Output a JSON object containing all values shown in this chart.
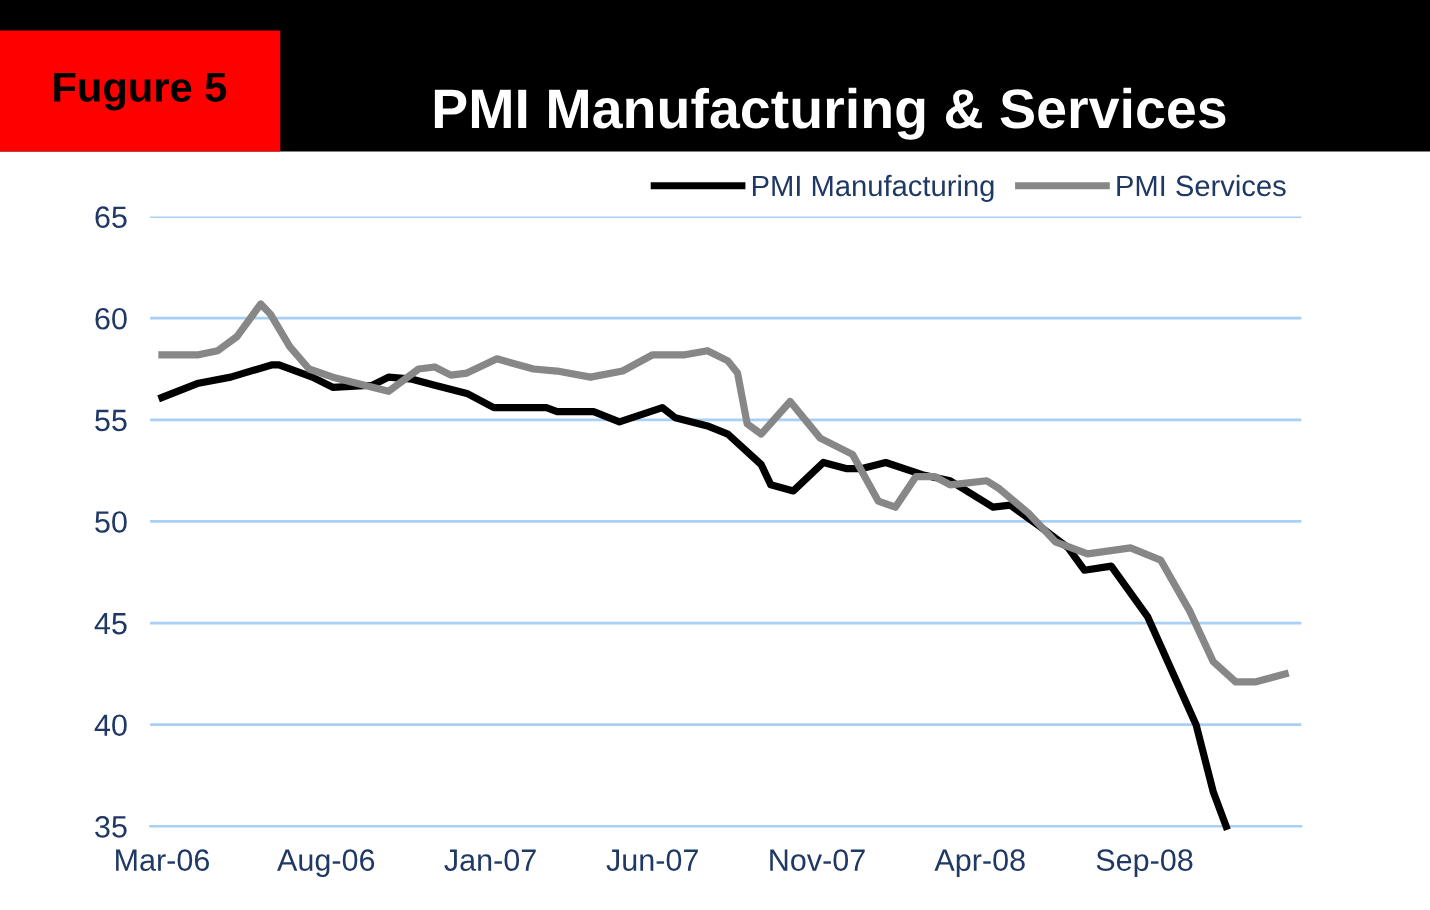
{
  "chart_data": {
    "type": "line",
    "title": "PMI Manufacturing & Services",
    "annotations": [
      "Fugure 5"
    ],
    "xlim": [
      "2006-02-18",
      "2009-01-25"
    ],
    "ylim": [
      35,
      65
    ],
    "yticks": [
      35,
      40,
      45,
      50,
      55,
      60,
      65
    ],
    "xticks": [
      {
        "value": "2006-03-01",
        "label": "Mar-06"
      },
      {
        "value": "2006-08-01",
        "label": "Aug-06"
      },
      {
        "value": "2007-01-01",
        "label": "Jan-07"
      },
      {
        "value": "2007-06-01",
        "label": "Jun-07"
      },
      {
        "value": "2007-11-01",
        "label": "Nov-07"
      },
      {
        "value": "2008-04-01",
        "label": "Apr-08"
      },
      {
        "value": "2008-09-01",
        "label": "Sep-08"
      }
    ],
    "grid": "y",
    "legend": "top right",
    "marker": "none",
    "line_style": "solid",
    "series": [
      {
        "name": "PMI Manufacturing",
        "color": "#000000",
        "x": [
          "2006-03-01",
          "2006-04-04",
          "2006-05-04",
          "2006-06-11",
          "2006-06-18",
          "2006-07-19",
          "2006-08-07",
          "2006-09-13",
          "2006-09-28",
          "2006-10-20",
          "2006-11-10",
          "2006-12-10",
          "2007-01-04",
          "2007-02-22",
          "2007-03-04",
          "2007-04-07",
          "2007-05-01",
          "2007-06-10",
          "2007-06-22",
          "2007-07-22",
          "2007-08-10",
          "2007-09-10",
          "2007-09-19",
          "2007-10-10",
          "2007-11-07",
          "2007-11-28",
          "2007-12-13",
          "2008-01-04",
          "2008-02-07",
          "2008-03-04",
          "2008-04-13",
          "2008-04-29",
          "2008-05-28",
          "2008-06-22",
          "2008-07-07",
          "2008-08-01",
          "2008-09-04",
          "2008-10-19",
          "2008-11-04",
          "2008-11-16"
        ],
        "values": [
          56.1,
          56.8,
          57.1,
          57.7,
          57.7,
          57.1,
          56.6,
          56.7,
          57.1,
          57.0,
          56.7,
          56.3,
          55.6,
          55.6,
          55.4,
          55.4,
          54.9,
          55.6,
          55.1,
          54.7,
          54.3,
          52.8,
          51.8,
          51.5,
          52.9,
          52.6,
          52.6,
          52.9,
          52.3,
          52.0,
          50.7,
          50.8,
          49.7,
          48.7,
          47.6,
          47.8,
          45.3,
          40.0,
          36.7,
          35.0
        ]
      },
      {
        "name": "PMI Services",
        "color": "#878787",
        "x": [
          "2006-03-01",
          "2006-04-04",
          "2006-04-22",
          "2006-05-10",
          "2006-06-01",
          "2006-06-10",
          "2006-06-28",
          "2006-07-16",
          "2006-08-07",
          "2006-09-13",
          "2006-09-28",
          "2006-10-26",
          "2006-11-10",
          "2006-11-25",
          "2006-12-10",
          "2007-01-07",
          "2007-02-10",
          "2007-03-04",
          "2007-04-04",
          "2007-05-04",
          "2007-06-01",
          "2007-07-01",
          "2007-07-22",
          "2007-08-10",
          "2007-08-19",
          "2007-08-28",
          "2007-09-10",
          "2007-10-07",
          "2007-11-04",
          "2007-12-04",
          "2007-12-28",
          "2008-01-13",
          "2008-02-01",
          "2008-02-19",
          "2008-03-04",
          "2008-04-07",
          "2008-04-19",
          "2008-05-16",
          "2008-06-10",
          "2008-07-10",
          "2008-08-19",
          "2008-09-16",
          "2008-10-13",
          "2008-11-04",
          "2008-11-25",
          "2008-12-13",
          "2009-01-10"
        ],
        "values": [
          58.2,
          58.2,
          58.4,
          59.1,
          60.7,
          60.2,
          58.6,
          57.5,
          57.1,
          56.6,
          56.4,
          57.5,
          57.6,
          57.2,
          57.3,
          58.0,
          57.5,
          57.4,
          57.1,
          57.4,
          58.2,
          58.2,
          58.4,
          57.9,
          57.3,
          54.8,
          54.3,
          55.9,
          54.1,
          53.3,
          51.0,
          50.7,
          52.2,
          52.2,
          51.8,
          52.0,
          51.6,
          50.4,
          49.0,
          48.4,
          48.7,
          48.1,
          45.6,
          43.1,
          42.1,
          42.1,
          42.5
        ]
      }
    ]
  }
}
